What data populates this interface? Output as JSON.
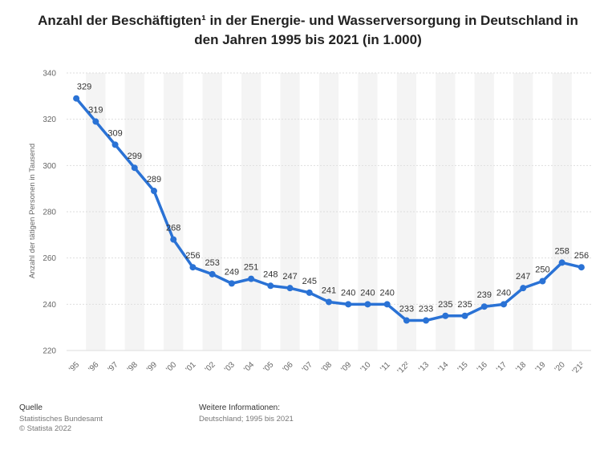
{
  "chart_data": {
    "type": "line",
    "title": "Anzahl der Beschäftigten¹ in der Energie- und Wasserversorgung in Deutschland in den Jahren 1995 bis 2021 (in 1.000)",
    "xlabel": "",
    "ylabel": "Anzahl der tätigen Personen in Tausend",
    "ylim": [
      220,
      340
    ],
    "yticks": [
      220,
      240,
      260,
      280,
      300,
      320,
      340
    ],
    "categories": [
      "'95",
      "'96",
      "'97",
      "'98",
      "'99",
      "'00",
      "'01",
      "'02",
      "'03",
      "'04",
      "'05",
      "'06",
      "'07",
      "'08",
      "'09",
      "'10",
      "'11",
      "'12²",
      "'13",
      "'14",
      "'15",
      "'16",
      "'17",
      "'18",
      "'19",
      "'20",
      "'21²"
    ],
    "series": [
      {
        "name": "Beschäftigte",
        "values": [
          329,
          319,
          309,
          299,
          289,
          268,
          256,
          253,
          249,
          251,
          248,
          247,
          245,
          241,
          240,
          240,
          240,
          233,
          233,
          235,
          235,
          239,
          240,
          247,
          250,
          258,
          256
        ]
      }
    ],
    "grid": true,
    "line_color": "#2a72d5"
  },
  "footer": {
    "source_heading": "Quelle",
    "source_line1": "Statistisches Bundesamt",
    "source_line2": "© Statista 2022",
    "info_heading": "Weitere Informationen:",
    "info_line1": "Deutschland; 1995 bis 2021"
  }
}
